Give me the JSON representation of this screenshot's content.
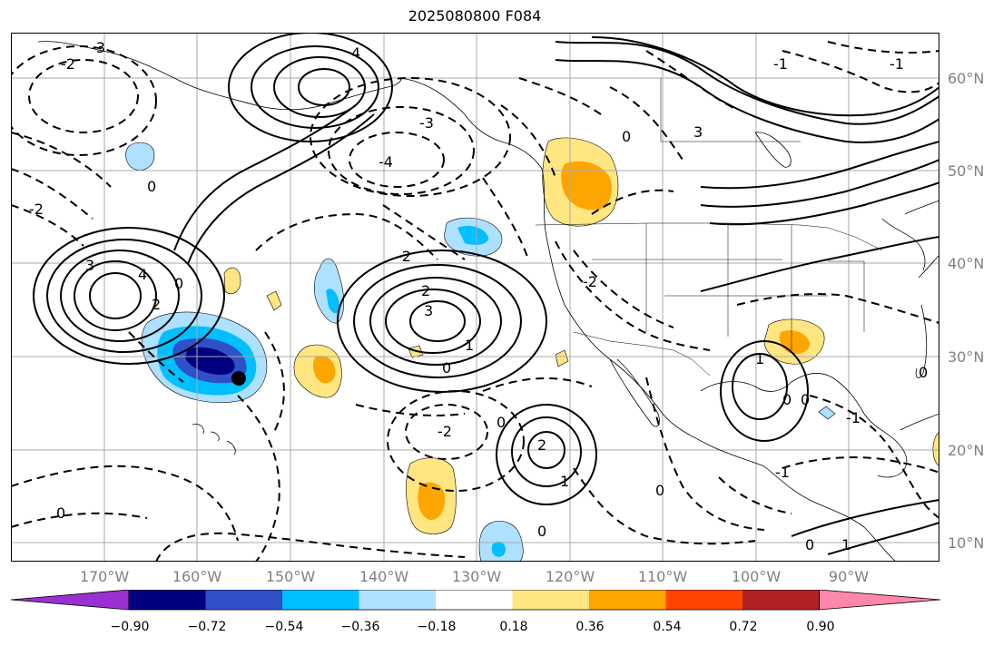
{
  "title": "2025080800 F084",
  "lat_labels": [
    "60°N",
    "50°N",
    "40°N",
    "30°N",
    "20°N",
    "10°N"
  ],
  "lon_labels": [
    "170°W",
    "160°W",
    "150°W",
    "140°W",
    "130°W",
    "120°W",
    "110°W",
    "100°W",
    "90°W"
  ],
  "colorbar": {
    "tick_labels": [
      "−0.90",
      "−0.72",
      "−0.54",
      "−0.36",
      "−0.18",
      "0.18",
      "0.36",
      "0.54",
      "0.72",
      "0.90"
    ],
    "colors": [
      "#9b30d0",
      "#000080",
      "#3050c8",
      "#00bfff",
      "#aee0ff",
      "#ffffff",
      "#ffe680",
      "#ffa500",
      "#ff4500",
      "#b22222",
      "#ff88aa"
    ]
  },
  "contour_labels": {
    "positive": [
      "4",
      "3",
      "2",
      "1",
      "3",
      "2",
      "1",
      "4",
      "1",
      "3",
      "2",
      "1"
    ],
    "zero": [
      "0",
      "0",
      "0",
      "0",
      "0",
      "0",
      "0",
      "0",
      "0",
      "0",
      "0",
      "0"
    ],
    "negative": [
      "-3",
      "-2",
      "-4",
      "-2",
      "-2",
      "-1",
      "-1",
      "-2",
      "-3",
      "-1",
      "-1",
      "-2"
    ]
  },
  "storm_marker": "tropical-cyclone-dot"
}
